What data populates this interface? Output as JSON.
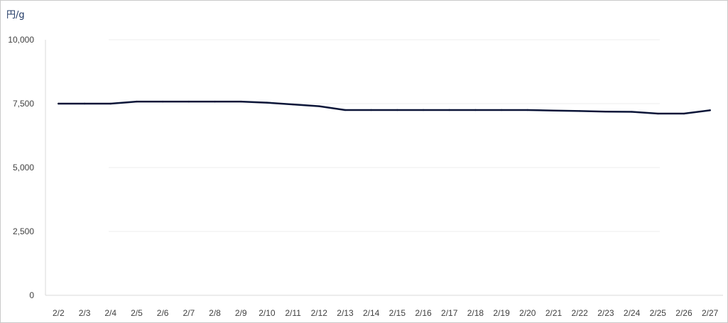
{
  "chart_data": {
    "type": "line",
    "title": "",
    "unit_label": "円/g",
    "xlabel": "",
    "ylabel": "円/g",
    "ylim": [
      0,
      10000
    ],
    "y_ticks": [
      "0",
      "2,500",
      "5,000",
      "7,500",
      "10,000"
    ],
    "y_tick_values": [
      0,
      2500,
      5000,
      7500,
      10000
    ],
    "grid": true,
    "legend": "none",
    "categories": [
      "2/2",
      "2/3",
      "2/4",
      "2/5",
      "2/6",
      "2/7",
      "2/8",
      "2/9",
      "2/10",
      "2/11",
      "2/12",
      "2/13",
      "2/14",
      "2/15",
      "2/16",
      "2/17",
      "2/18",
      "2/19",
      "2/20",
      "2/21",
      "2/22",
      "2/23",
      "2/24",
      "2/25",
      "2/26",
      "2/27"
    ],
    "series": [
      {
        "color": "#0b1538",
        "values": [
          7500,
          7500,
          7500,
          7580,
          7580,
          7580,
          7580,
          7580,
          7540,
          7470,
          7400,
          7250,
          7250,
          7250,
          7250,
          7250,
          7250,
          7250,
          7250,
          7230,
          7210,
          7190,
          7180,
          7110,
          7110,
          7240
        ]
      }
    ]
  }
}
